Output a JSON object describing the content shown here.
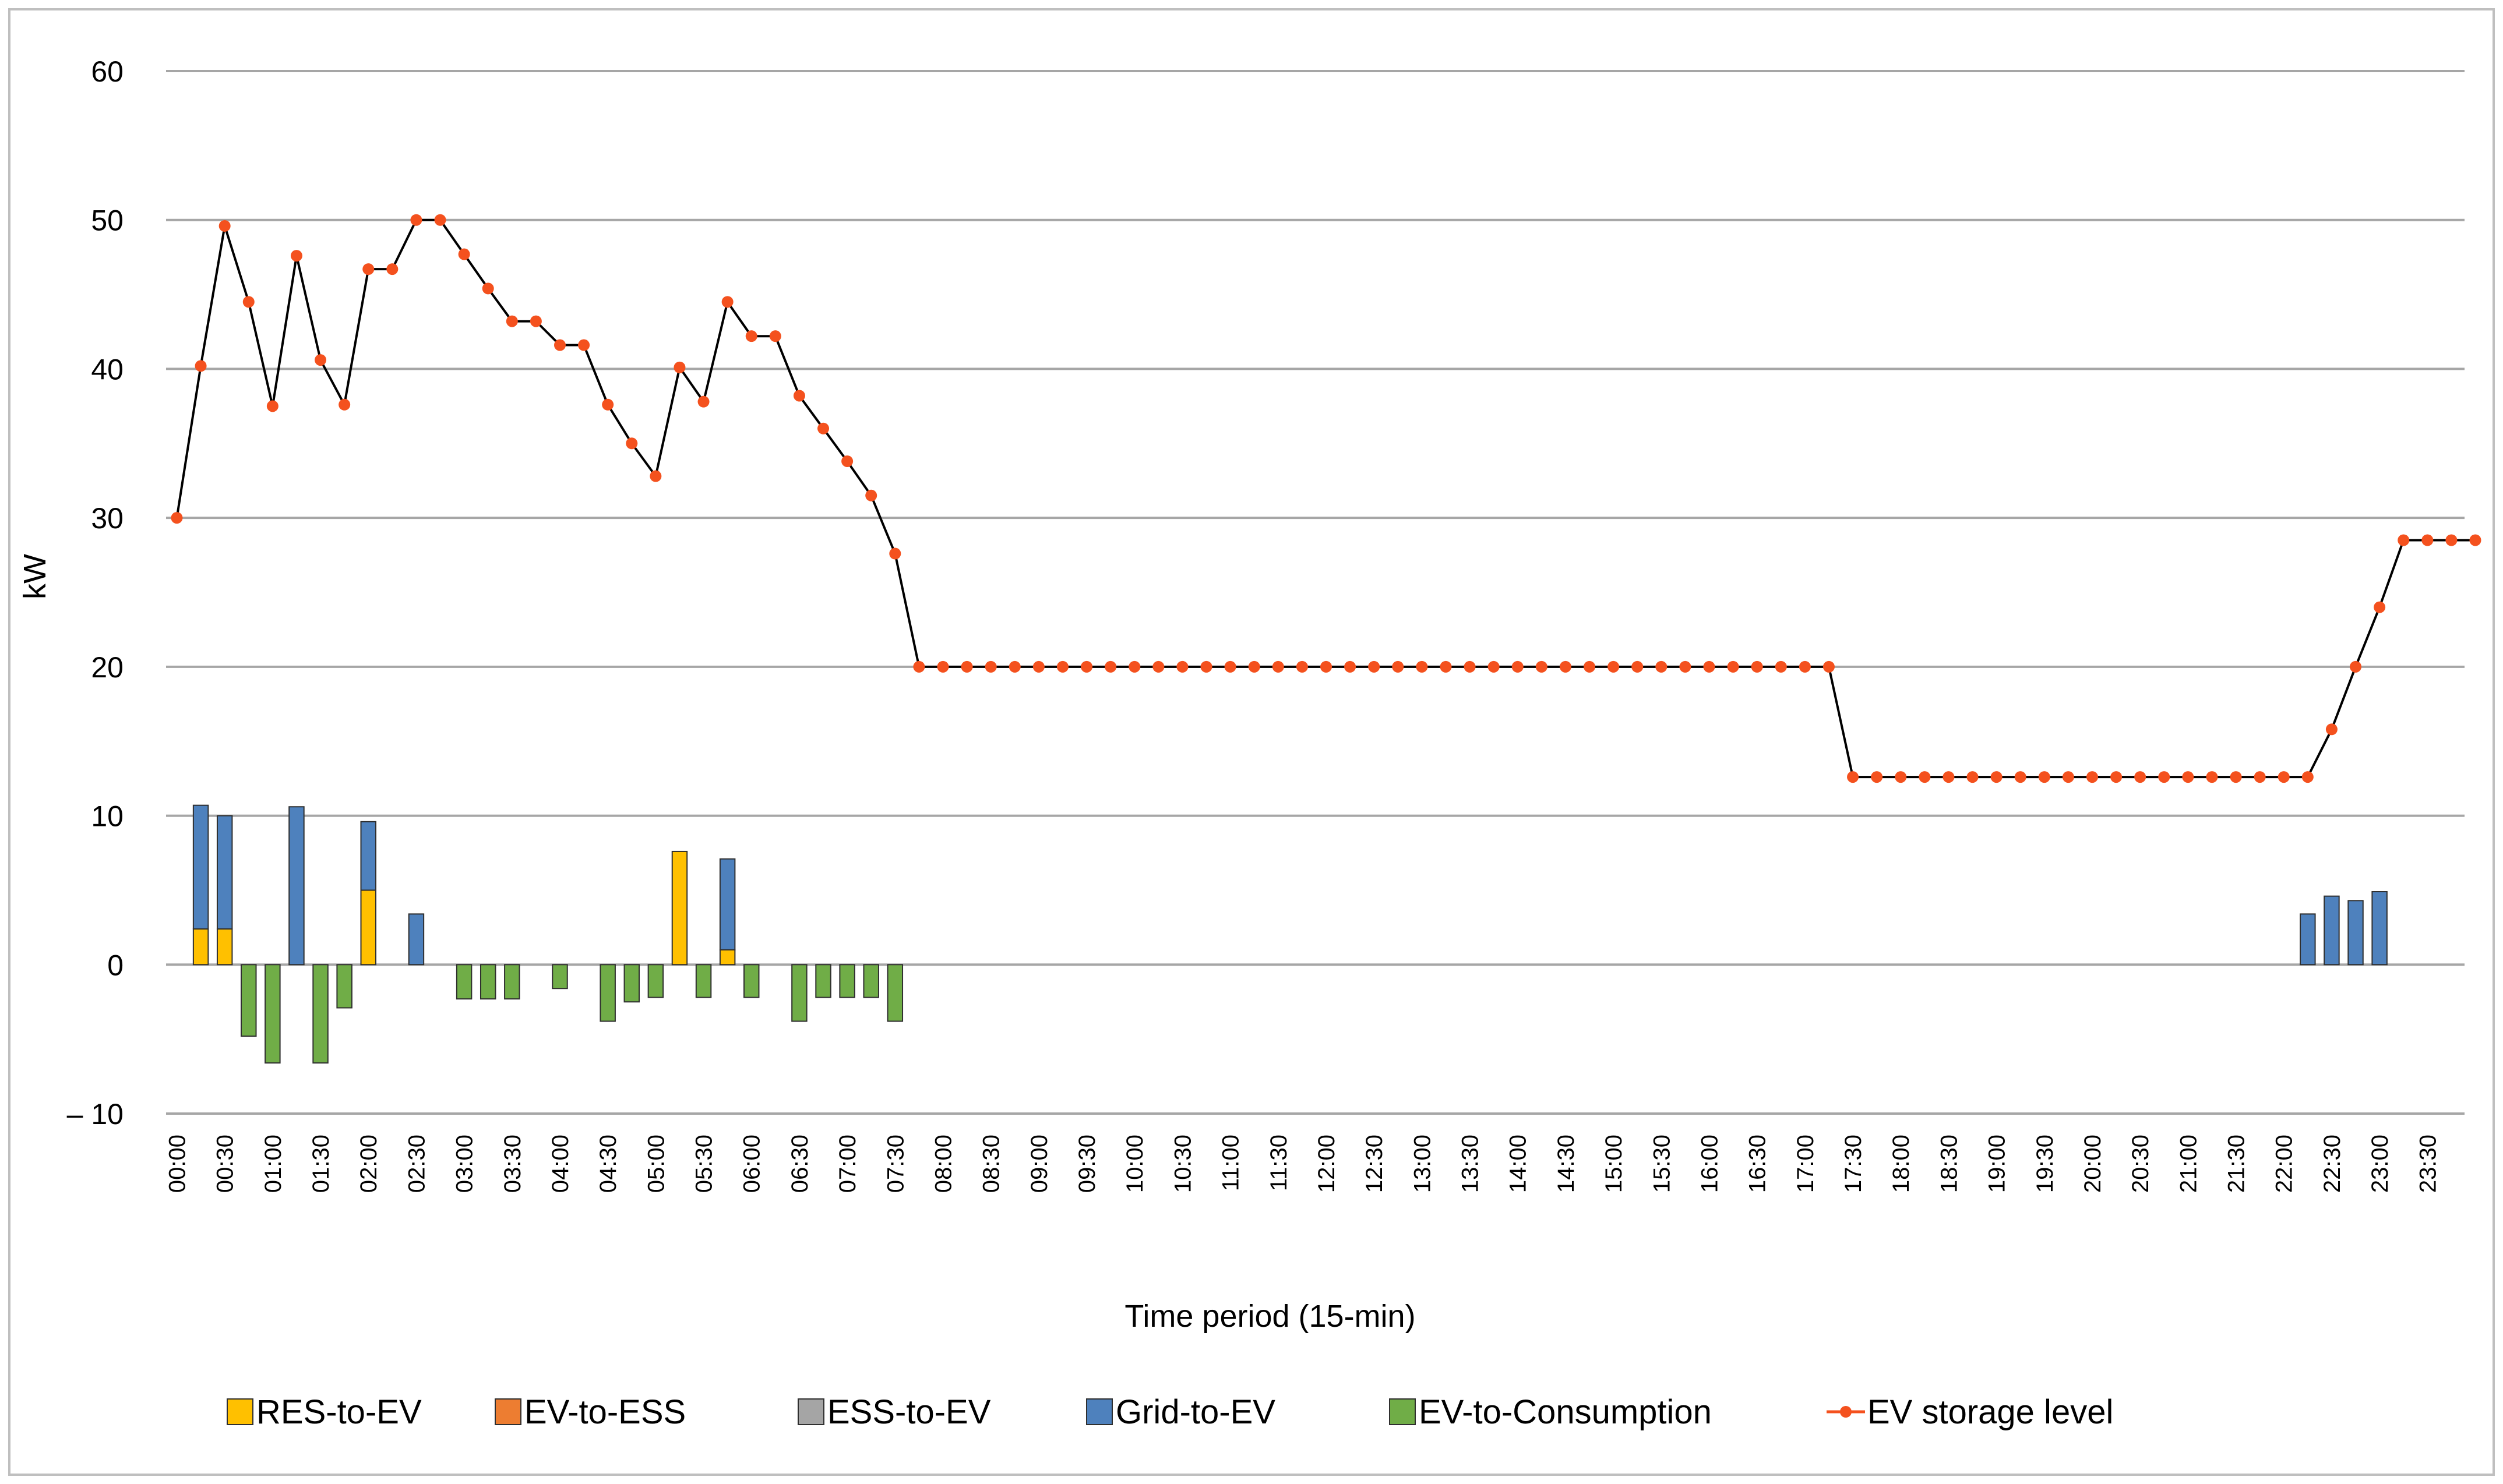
{
  "chart_data": {
    "type": "bar",
    "xlabel": "Time period (15-min)",
    "ylabel": "kW",
    "ylim": [
      -10,
      60
    ],
    "yticks": [
      60,
      50,
      40,
      30,
      20,
      10,
      0,
      -10
    ],
    "ytick_labels": [
      "60",
      "50",
      "40",
      "30",
      "20",
      "10",
      "0",
      "– 10"
    ],
    "grid": true,
    "legend_position": "bottom",
    "x_labels": [
      "00:00",
      "00:30",
      "01:00",
      "01:30",
      "02:00",
      "02:30",
      "03:00",
      "03:30",
      "04:00",
      "04:30",
      "05:00",
      "05:30",
      "06:00",
      "06:30",
      "07:00",
      "07:30",
      "08:00",
      "08:30",
      "09:00",
      "09:30",
      "10:00",
      "10:30",
      "11:00",
      "11:30",
      "12:00",
      "12:30",
      "13:00",
      "13:30",
      "14:00",
      "14:30",
      "15:00",
      "15:30",
      "16:00",
      "16:30",
      "17:00",
      "17:30",
      "18:00",
      "18:30",
      "19:00",
      "19:30",
      "20:00",
      "20:30",
      "21:00",
      "21:30",
      "22:00",
      "22:30",
      "23:00",
      "23:30"
    ],
    "periods": 96,
    "colors": {
      "RES-to-EV": "#ffc000",
      "EV-to-ESS": "#ed7d31",
      "ESS-to-EV": "#a5a5a5",
      "Grid-to-EV": "#4e81bd",
      "EV-to-Consumption": "#70ad47",
      "EV storage level": "#f4511e",
      "line": "#000000",
      "grid": "#a6a6a6"
    },
    "series": [
      {
        "name": "RES-to-EV",
        "kind": "bar",
        "values": [
          0,
          2.4,
          2.4,
          0,
          0,
          0,
          0,
          0,
          5,
          0,
          0,
          0,
          0,
          0,
          0,
          0,
          0,
          0,
          0,
          0,
          0,
          7.6,
          0,
          1,
          0,
          0,
          0,
          0,
          0,
          0,
          0,
          0,
          0,
          0,
          0,
          0,
          0,
          0,
          0,
          0,
          0,
          0,
          0,
          0,
          0,
          0,
          0,
          0,
          0,
          0,
          0,
          0,
          0,
          0,
          0,
          0,
          0,
          0,
          0,
          0,
          0,
          0,
          0,
          0,
          0,
          0,
          0,
          0,
          0,
          0,
          0,
          0,
          0,
          0,
          0,
          0,
          0,
          0,
          0,
          0,
          0,
          0,
          0,
          0,
          0,
          0,
          0,
          0,
          0,
          0,
          0,
          0,
          0,
          0,
          0,
          0
        ]
      },
      {
        "name": "EV-to-ESS",
        "kind": "bar",
        "values": [
          0,
          0,
          0,
          0,
          0,
          0,
          0,
          0,
          0,
          0,
          0,
          0,
          0,
          0,
          0,
          0,
          0,
          0,
          0,
          0,
          0,
          0,
          0,
          0,
          0,
          0,
          0,
          0,
          0,
          0,
          0,
          0,
          0,
          0,
          0,
          0,
          0,
          0,
          0,
          0,
          0,
          0,
          0,
          0,
          0,
          0,
          0,
          0,
          0,
          0,
          0,
          0,
          0,
          0,
          0,
          0,
          0,
          0,
          0,
          0,
          0,
          0,
          0,
          0,
          0,
          0,
          0,
          0,
          0,
          0,
          0,
          0,
          0,
          0,
          0,
          0,
          0,
          0,
          0,
          0,
          0,
          0,
          0,
          0,
          0,
          0,
          0,
          0,
          0,
          0,
          0,
          0,
          0,
          0,
          0,
          0
        ]
      },
      {
        "name": "ESS-to-EV",
        "kind": "bar",
        "values": [
          0,
          0,
          0,
          0,
          0,
          0,
          0,
          0,
          0,
          0,
          0,
          0,
          0,
          0,
          0,
          0,
          0,
          0,
          0,
          0,
          0,
          0,
          0,
          0,
          0,
          0,
          0,
          0,
          0,
          0,
          0,
          0,
          0,
          0,
          0,
          0,
          0,
          0,
          0,
          0,
          0,
          0,
          0,
          0,
          0,
          0,
          0,
          0,
          0,
          0,
          0,
          0,
          0,
          0,
          0,
          0,
          0,
          0,
          0,
          0,
          0,
          0,
          0,
          0,
          0,
          0,
          0,
          0,
          0,
          0,
          0,
          0,
          0,
          0,
          0,
          0,
          0,
          0,
          0,
          0,
          0,
          0,
          0,
          0,
          0,
          0,
          0,
          0,
          0,
          0,
          0,
          0,
          0,
          0,
          0,
          0
        ]
      },
      {
        "name": "Grid-to-EV",
        "kind": "bar",
        "values": [
          0,
          8.3,
          7.6,
          0,
          0,
          10.6,
          0,
          0,
          4.6,
          0,
          3.4,
          0,
          0,
          0,
          0,
          0,
          0,
          0,
          0,
          0,
          0,
          0,
          0,
          6.1,
          0,
          0,
          0,
          0,
          0,
          0,
          0,
          0,
          0,
          0,
          0,
          0,
          0,
          0,
          0,
          0,
          0,
          0,
          0,
          0,
          0,
          0,
          0,
          0,
          0,
          0,
          0,
          0,
          0,
          0,
          0,
          0,
          0,
          0,
          0,
          0,
          0,
          0,
          0,
          0,
          0,
          0,
          0,
          0,
          0,
          0,
          0,
          0,
          0,
          0,
          0,
          0,
          0,
          0,
          0,
          0,
          0,
          0,
          0,
          0,
          0,
          0,
          0,
          0,
          0,
          3.4,
          4.6,
          4.3,
          4.9,
          0,
          0,
          0
        ]
      },
      {
        "name": "EV-to-Consumption",
        "kind": "bar",
        "values": [
          0,
          0,
          0,
          -4.8,
          -6.6,
          0,
          -6.6,
          -2.9,
          0,
          0,
          0,
          0,
          -2.3,
          -2.3,
          -2.3,
          0,
          -1.6,
          0,
          -3.8,
          -2.5,
          -2.2,
          0,
          -2.2,
          0,
          -2.2,
          0,
          -3.8,
          -2.2,
          -2.2,
          -2.2,
          -3.8,
          0,
          0,
          0,
          0,
          0,
          0,
          0,
          0,
          0,
          0,
          0,
          0,
          0,
          0,
          0,
          0,
          0,
          0,
          0,
          0,
          0,
          0,
          0,
          0,
          0,
          0,
          0,
          0,
          0,
          0,
          0,
          0,
          0,
          0,
          0,
          0,
          0,
          0,
          0,
          0,
          0,
          0,
          0,
          0,
          0,
          0,
          0,
          0,
          0,
          0,
          0,
          0,
          0,
          0,
          0,
          0,
          0,
          0,
          0,
          0,
          0,
          0,
          0,
          0,
          0
        ]
      },
      {
        "name": "EV storage level",
        "kind": "line",
        "values": [
          30,
          40.2,
          49.6,
          44.5,
          37.5,
          47.6,
          40.6,
          37.6,
          46.7,
          46.7,
          50,
          50,
          47.7,
          45.4,
          43.2,
          43.2,
          41.6,
          41.6,
          37.6,
          35,
          32.8,
          40.1,
          37.8,
          44.5,
          42.2,
          42.2,
          38.2,
          36,
          33.8,
          31.5,
          27.6,
          20,
          20,
          20,
          20,
          20,
          20,
          20,
          20,
          20,
          20,
          20,
          20,
          20,
          20,
          20,
          20,
          20,
          20,
          20,
          20,
          20,
          20,
          20,
          20,
          20,
          20,
          20,
          20,
          20,
          20,
          20,
          20,
          20,
          20,
          20,
          20,
          20,
          20,
          20,
          12.6,
          12.6,
          12.6,
          12.6,
          12.6,
          12.6,
          12.6,
          12.6,
          12.6,
          12.6,
          12.6,
          12.6,
          12.6,
          12.6,
          12.6,
          12.6,
          12.6,
          12.6,
          12.6,
          12.6,
          15.8,
          20,
          24,
          28.5,
          28.5,
          28.5,
          28.5
        ]
      }
    ]
  }
}
